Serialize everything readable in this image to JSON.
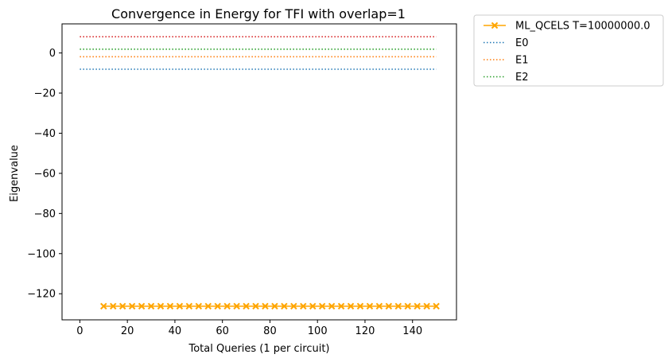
{
  "chart_data": {
    "type": "line",
    "title": "Convergence in Energy for TFI with overlap=1",
    "xlabel": "Total Queries (1 per circuit)",
    "ylabel": "Eigenvalue",
    "xlim": [
      -7.5,
      158.5
    ],
    "ylim": [
      -133.0,
      14.5
    ],
    "xticks": [
      0,
      20,
      40,
      60,
      80,
      100,
      120,
      140
    ],
    "yticks": [
      0,
      -20,
      -40,
      -60,
      -80,
      -100,
      -120
    ],
    "ytick_labels": [
      "0",
      "−20",
      "−40",
      "−60",
      "−80",
      "−100",
      "−120"
    ],
    "grid": false,
    "legend_position": "outside-top-right",
    "series": [
      {
        "name": "ML_QCELS T=10000000.0",
        "style": "solid",
        "marker": "X",
        "color": "#ffa500",
        "x": [
          10,
          14,
          18,
          22,
          26,
          30,
          34,
          38,
          42,
          46,
          50,
          54,
          58,
          62,
          66,
          70,
          74,
          78,
          82,
          86,
          90,
          94,
          98,
          102,
          106,
          110,
          114,
          118,
          122,
          126,
          130,
          134,
          138,
          142,
          146,
          150
        ],
        "values": [
          -126.2,
          -126.2,
          -126.2,
          -126.2,
          -126.2,
          -126.2,
          -126.2,
          -126.2,
          -126.2,
          -126.2,
          -126.2,
          -126.2,
          -126.2,
          -126.2,
          -126.2,
          -126.2,
          -126.2,
          -126.2,
          -126.2,
          -126.2,
          -126.2,
          -126.2,
          -126.2,
          -126.2,
          -126.2,
          -126.2,
          -126.2,
          -126.2,
          -126.2,
          -126.2,
          -126.2,
          -126.2,
          -126.2,
          -126.2,
          -126.2,
          -126.2
        ]
      },
      {
        "name": "E0",
        "style": "dotted",
        "color": "#1f77b4",
        "x": [
          0,
          150
        ],
        "values": [
          -8.1,
          -8.1
        ]
      },
      {
        "name": "E1",
        "style": "dotted",
        "color": "#ff7f0e",
        "x": [
          0,
          150
        ],
        "values": [
          -1.9,
          -1.9
        ]
      },
      {
        "name": "E2",
        "style": "dotted",
        "color": "#2ca02c",
        "x": [
          0,
          150
        ],
        "values": [
          1.9,
          1.9
        ]
      },
      {
        "style": "dotted",
        "color": "#d62728",
        "x": [
          0,
          150
        ],
        "values": [
          8.1,
          8.1
        ]
      }
    ]
  }
}
